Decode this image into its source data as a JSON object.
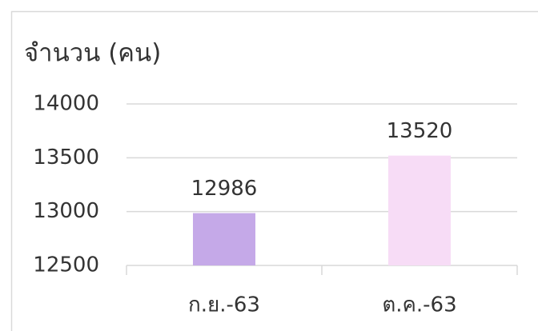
{
  "chart_data": {
    "type": "bar",
    "title": "จำนวน (คน)",
    "categories": [
      "ก.ย.-63",
      "ต.ค.-63"
    ],
    "values": [
      12986,
      13520
    ],
    "colors": [
      "#c5a9e8",
      "#f7dcf6"
    ],
    "ylim": [
      12500,
      14000
    ],
    "yticks": [
      12500,
      13000,
      13500,
      14000
    ],
    "grid": true
  }
}
